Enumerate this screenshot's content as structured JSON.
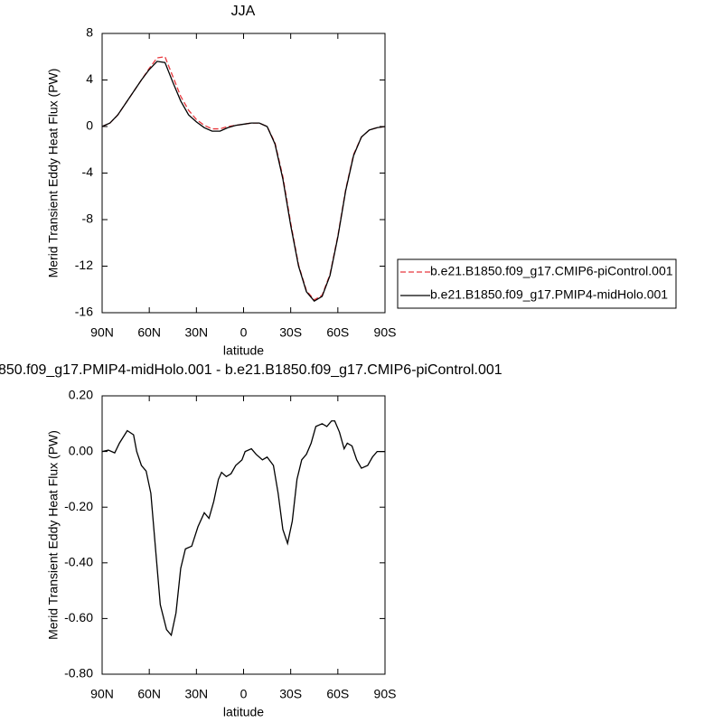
{
  "chart_data": [
    {
      "type": "line",
      "title": "JJA",
      "xlabel": "latitude",
      "ylabel": "Merid Transient Eddy Heat Flux (PW)",
      "x": [
        90,
        85,
        80,
        75,
        70,
        65,
        60,
        55,
        50,
        45,
        40,
        35,
        30,
        25,
        20,
        15,
        10,
        5,
        0,
        -5,
        -10,
        -15,
        -20,
        -25,
        -30,
        -35,
        -40,
        -45,
        -50,
        -55,
        -60,
        -65,
        -70,
        -75,
        -80,
        -85,
        -90
      ],
      "series": [
        {
          "name": "b.e21.B1850.f09_g17.CMIP6-piControl.001",
          "color": "#e8383d",
          "linestyle": "dashed",
          "values": [
            0,
            0.3,
            1.0,
            2.0,
            3.0,
            4.0,
            5.0,
            5.9,
            6.0,
            4.3,
            2.6,
            1.4,
            0.6,
            0.1,
            -0.2,
            -0.2,
            0.0,
            0.1,
            0.2,
            0.3,
            0.3,
            0.0,
            -1.4,
            -4.3,
            -8.3,
            -11.9,
            -14.1,
            -14.9,
            -14.5,
            -12.7,
            -9.4,
            -5.4,
            -2.4,
            -0.9,
            -0.3,
            -0.1,
            0
          ]
        },
        {
          "name": "b.e21.B1850.f09_g17.PMIP4-midHolo.001",
          "color": "#000000",
          "linestyle": "solid",
          "values": [
            0,
            0.3,
            1.0,
            2.0,
            3.0,
            4.0,
            4.9,
            5.6,
            5.5,
            3.8,
            2.2,
            1.0,
            0.4,
            -0.1,
            -0.4,
            -0.4,
            -0.1,
            0.1,
            0.2,
            0.3,
            0.3,
            0.0,
            -1.5,
            -4.5,
            -8.5,
            -12.0,
            -14.2,
            -15.0,
            -14.6,
            -12.8,
            -9.5,
            -5.5,
            -2.5,
            -0.9,
            -0.3,
            -0.1,
            0
          ]
        }
      ],
      "xlim": [
        90,
        -90
      ],
      "ylim": [
        -16,
        8
      ],
      "xticks": [
        {
          "value": 90,
          "label": "90N"
        },
        {
          "value": 60,
          "label": "60N"
        },
        {
          "value": 30,
          "label": "30N"
        },
        0,
        {
          "value": -30,
          "label": "30S"
        },
        {
          "value": -60,
          "label": "60S"
        },
        {
          "value": -90,
          "label": "90S"
        }
      ],
      "yticks": [
        8,
        4,
        0,
        -4,
        -8,
        -12,
        -16
      ],
      "legend": "outside right"
    },
    {
      "type": "line",
      "title": "850.f09_g17.PMIP4-midHolo.001 - b.e21.B1850.f09_g17.CMIP6-piControl.001",
      "xlabel": "latitude",
      "ylabel": "Merid Transient Eddy Heat Flux (PW)",
      "x": [
        90,
        86,
        82,
        79,
        74,
        70,
        68,
        65,
        62,
        59,
        56,
        53,
        49,
        46,
        43,
        40,
        37,
        33,
        29,
        25,
        22,
        19,
        16,
        14,
        11,
        8,
        5,
        1,
        -1,
        -5,
        -8,
        -12,
        -15,
        -19,
        -22,
        -25,
        -28,
        -31,
        -34,
        -37,
        -40,
        -43,
        -46,
        -50,
        -53,
        -56,
        -58,
        -61,
        -64,
        -66,
        -69,
        -72,
        -75,
        -79,
        -82,
        -85,
        -90
      ],
      "series": [
        {
          "color": "#000000",
          "linestyle": "solid",
          "values": [
            0,
            0.005,
            -0.005,
            0.03,
            0.075,
            0.06,
            0.0,
            -0.05,
            -0.07,
            -0.15,
            -0.35,
            -0.55,
            -0.64,
            -0.66,
            -0.58,
            -0.42,
            -0.35,
            -0.34,
            -0.27,
            -0.22,
            -0.24,
            -0.18,
            -0.1,
            -0.075,
            -0.09,
            -0.08,
            -0.05,
            -0.03,
            0.0,
            0.01,
            -0.01,
            -0.03,
            -0.02,
            -0.05,
            -0.15,
            -0.28,
            -0.33,
            -0.25,
            -0.1,
            -0.03,
            -0.01,
            0.03,
            0.09,
            0.1,
            0.09,
            0.11,
            0.11,
            0.07,
            0.01,
            0.03,
            0.02,
            -0.03,
            -0.06,
            -0.05,
            -0.02,
            0.0,
            0.0
          ]
        }
      ],
      "xlim": [
        90,
        -90
      ],
      "ylim": [
        -0.8,
        0.2
      ],
      "xticks": [
        {
          "value": 90,
          "label": "90N"
        },
        {
          "value": 60,
          "label": "60N"
        },
        {
          "value": 30,
          "label": "30N"
        },
        0,
        {
          "value": -30,
          "label": "30S"
        },
        {
          "value": -60,
          "label": "60S"
        },
        {
          "value": -90,
          "label": "90S"
        }
      ],
      "yticks": [
        {
          "value": 0.2,
          "label": "0.20"
        },
        {
          "value": 0,
          "label": "0.00"
        },
        {
          "value": -0.2,
          "label": "-0.20"
        },
        {
          "value": -0.4,
          "label": "-0.40"
        },
        {
          "value": -0.6,
          "label": "-0.60"
        },
        {
          "value": -0.8,
          "label": "-0.80"
        }
      ]
    }
  ]
}
